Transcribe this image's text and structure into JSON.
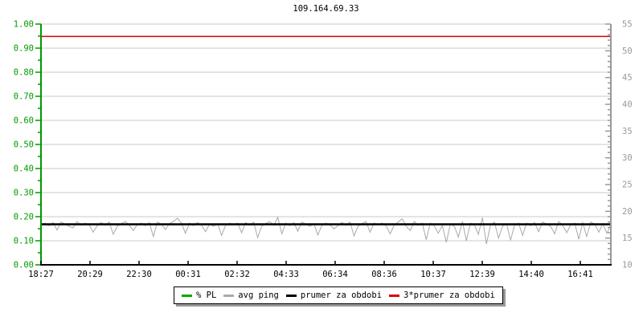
{
  "title": "109.164.69.33",
  "chart_data": {
    "type": "line",
    "title": "109.164.69.33",
    "left_axis": {
      "name": "packet-loss-fraction",
      "min": 0,
      "max": 1,
      "tick_labels": [
        "1.00",
        "0.90",
        "0.80",
        "0.70",
        "0.60",
        "0.50",
        "0.40",
        "0.30",
        "0.20",
        "0.10",
        "0.00"
      ],
      "color": "#009900"
    },
    "right_axis": {
      "name": "ping-milliseconds",
      "min": 10,
      "max": 55,
      "tick_labels": [
        "55",
        "50",
        "45",
        "40",
        "35",
        "30",
        "25",
        "20",
        "15",
        "10"
      ],
      "color": "#999999"
    },
    "x_axis": {
      "tick_labels": [
        "18:27",
        "20:29",
        "22:30",
        "00:31",
        "02:32",
        "04:33",
        "06:34",
        "08:36",
        "10:37",
        "12:39",
        "14:40",
        "16:41"
      ],
      "color": "#000000"
    },
    "grid": {
      "color": "#c8c8c8",
      "horizontal_step": 0.1
    },
    "series": [
      {
        "name": "% PL",
        "type": "flat",
        "axis": "left",
        "value": 0,
        "color": "#009900",
        "width": 1.5
      },
      {
        "name": "avg ping",
        "type": "noisy-line",
        "axis": "right",
        "color": "#aaaaaa",
        "width": 1,
        "values": [
          17.5,
          17.8,
          17.3,
          17.9,
          16.5,
          18.0,
          17.6,
          17.2,
          16.9,
          18.1,
          17.4,
          17.8,
          17.5,
          16.1,
          17.3,
          17.9,
          17.4,
          18.0,
          15.7,
          17.2,
          17.7,
          18.1,
          17.4,
          16.4,
          17.5,
          17.8,
          17.3,
          17.9,
          15.3,
          18.0,
          17.6,
          16.6,
          17.7,
          18.1,
          18.7,
          17.8,
          15.9,
          17.8,
          17.3,
          17.9,
          17.4,
          16.2,
          17.6,
          17.2,
          17.7,
          15.5,
          17.4,
          17.8,
          17.5,
          17.8,
          16.0,
          17.9,
          17.4,
          18.0,
          15.1,
          17.2,
          17.7,
          18.1,
          17.4,
          18.9,
          15.8,
          17.8,
          17.3,
          17.9,
          16.3,
          18.0,
          17.6,
          17.2,
          17.7,
          15.6,
          17.4,
          17.8,
          17.5,
          16.7,
          17.3,
          17.9,
          17.4,
          18.0,
          15.4,
          17.2,
          17.7,
          18.1,
          16.1,
          17.8,
          17.5,
          17.8,
          17.3,
          15.8,
          17.4,
          18.0,
          18.6,
          17.2,
          16.4,
          18.1,
          17.4,
          17.8,
          14.7,
          17.8,
          17.3,
          15.9,
          17.4,
          14.2,
          17.6,
          17.2,
          15.2,
          18.1,
          14.5,
          17.8,
          17.5,
          15.7,
          18.8,
          13.9,
          17.4,
          18.0,
          15.0,
          17.2,
          17.7,
          14.6,
          17.4,
          17.8,
          15.5,
          17.8,
          17.3,
          17.9,
          16.2,
          18.0,
          17.6,
          17.2,
          15.8,
          18.1,
          17.4,
          16.0,
          17.5,
          17.8,
          14.8,
          17.9,
          15.3,
          18.0,
          17.6,
          16.1,
          17.7,
          15.9,
          17.4
        ]
      },
      {
        "name": "prumer za obdobi",
        "type": "hline",
        "axis": "right",
        "value": 17.57,
        "color": "#000000",
        "width": 2.5
      },
      {
        "name": "3*prumer za obdobi",
        "type": "hline",
        "axis": "right",
        "value": 52.7,
        "color": "#dd0000",
        "width": 1.5
      }
    ]
  },
  "legend": {
    "items": [
      {
        "label": "% PL",
        "color": "#00aa00"
      },
      {
        "label": "avg ping",
        "color": "#aaaaaa"
      },
      {
        "label": "prumer za obdobi",
        "color": "#000000"
      },
      {
        "label": "3*prumer za obdobi",
        "color": "#dd0000"
      }
    ]
  }
}
